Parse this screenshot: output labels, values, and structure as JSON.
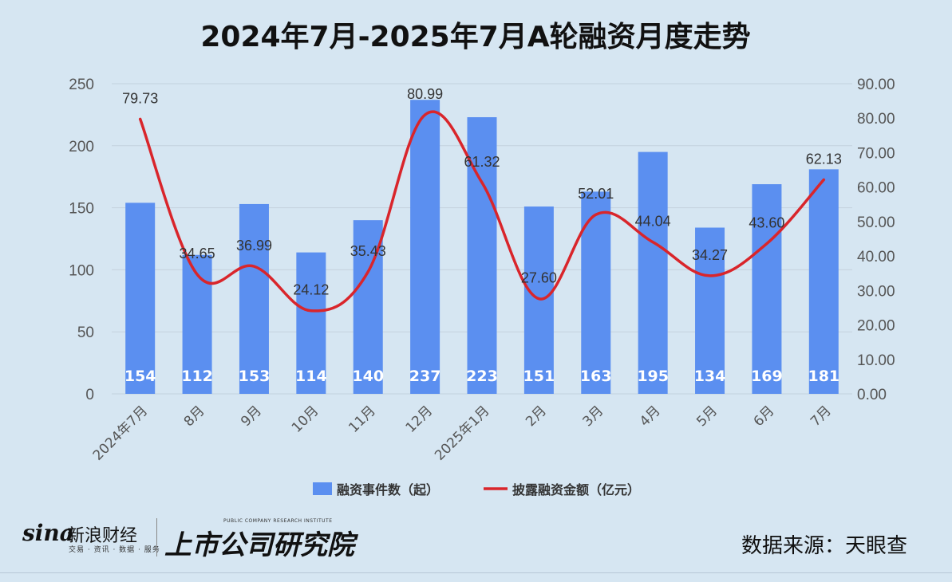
{
  "chart_data": {
    "type": "bar",
    "title": "2024年7月-2025年7月A轮融资月度走势",
    "categories": [
      "2024年7月",
      "8月",
      "9月",
      "10月",
      "11月",
      "12月",
      "2025年1月",
      "2月",
      "3月",
      "4月",
      "5月",
      "6月",
      "7月"
    ],
    "series": [
      {
        "name": "融资事件数（起）",
        "type": "bar",
        "axis": "left",
        "color": "#5b8ff0",
        "values": [
          154,
          112,
          153,
          114,
          140,
          237,
          223,
          151,
          163,
          195,
          134,
          169,
          181
        ],
        "labels": [
          "154",
          "112",
          "153",
          "114",
          "140",
          "237",
          "223",
          "151",
          "163",
          "195",
          "134",
          "169",
          "181"
        ]
      },
      {
        "name": "披露融资金额（亿元）",
        "type": "line",
        "axis": "right",
        "color": "#d9252b",
        "values": [
          79.73,
          34.65,
          36.99,
          24.12,
          35.43,
          80.99,
          61.32,
          27.6,
          52.01,
          44.04,
          34.27,
          43.6,
          62.13
        ],
        "labels": [
          "79.73",
          "34.65",
          "36.99",
          "24.12",
          "35.43",
          "80.99",
          "61.32",
          "27.60",
          "52.01",
          "44.04",
          "34.27",
          "43.60",
          "62.13"
        ]
      }
    ],
    "y_left": {
      "min": 0,
      "max": 250,
      "ticks": [
        "0",
        "50",
        "100",
        "150",
        "200",
        "250"
      ]
    },
    "y_right": {
      "min": 0,
      "max": 90,
      "ticks": [
        "0.00",
        "10.00",
        "20.00",
        "30.00",
        "40.00",
        "50.00",
        "60.00",
        "70.00",
        "80.00",
        "90.00"
      ]
    },
    "grid": true,
    "legend_position": "bottom"
  },
  "footer": {
    "sina_logo_word": "sina",
    "sina_logo_cn": "新浪财经",
    "sina_logo_sub": "交易 · 资讯 · 数据 · 服务",
    "research_logo_main": "上市公司研究院",
    "research_logo_sub": "PUBLIC COMPANY RESEARCH INSTITUTE",
    "source": "数据来源：天眼查"
  }
}
